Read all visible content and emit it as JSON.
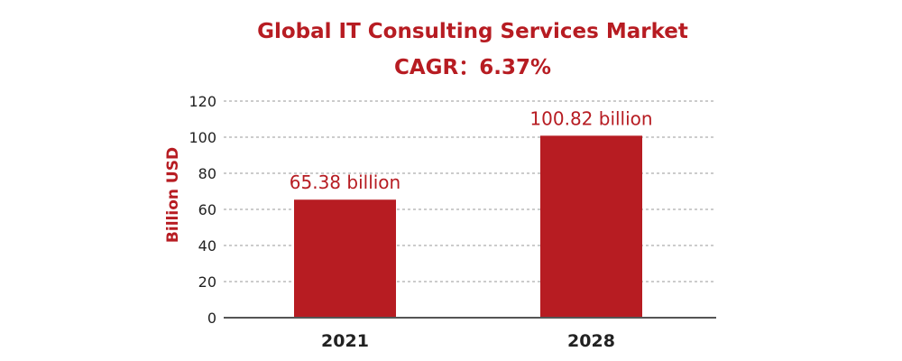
{
  "colors": {
    "accent": "#b71c22",
    "text": "#222222",
    "grid": "#999999",
    "axis": "#555555"
  },
  "chart_data": {
    "type": "bar",
    "title": "Global IT Consulting Services Market",
    "subtitle": "CAGR：6.37%",
    "xlabel": "",
    "ylabel": "Billion USD",
    "categories": [
      "2021",
      "2028"
    ],
    "values": [
      65.38,
      100.82
    ],
    "data_labels": [
      "65.38 billion",
      "100.82 billion"
    ],
    "ylim": [
      0,
      120
    ],
    "yticks": [
      0,
      20,
      40,
      60,
      80,
      100,
      120
    ],
    "grid": true,
    "legend": "none"
  }
}
